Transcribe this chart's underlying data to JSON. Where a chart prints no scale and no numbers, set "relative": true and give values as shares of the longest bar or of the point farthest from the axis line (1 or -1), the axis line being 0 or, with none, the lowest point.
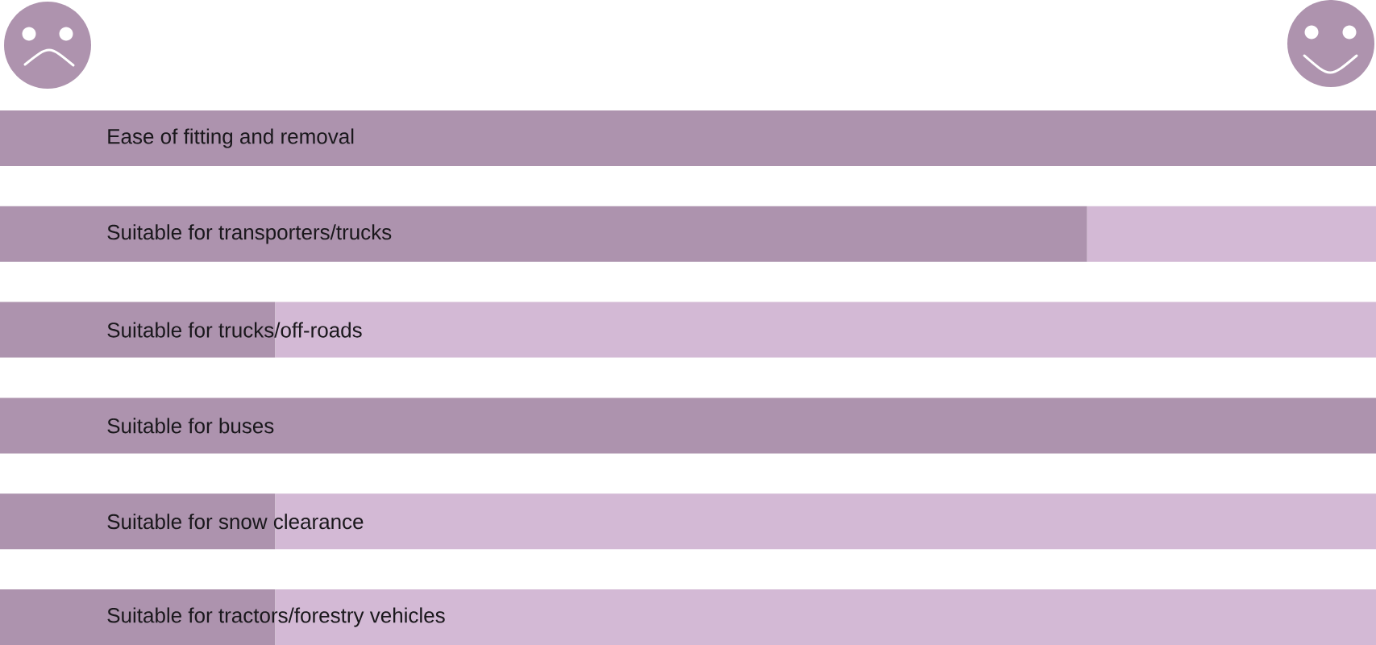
{
  "chart_data": {
    "type": "bar",
    "orientation": "horizontal",
    "stacked": true,
    "relative": true,
    "categories": [
      "Ease of fitting and removal",
      "Suitable for transporters/trucks",
      "Suitable for trucks/off-roads",
      "Suitable for buses",
      "Suitable for snow clearance",
      "Suitable for tractors/forestry vehicles"
    ],
    "series": [
      {
        "color": "#ad93ae",
        "values": [
          1,
          0.79,
          0.2,
          1,
          0.2,
          0.2
        ]
      },
      {
        "color": "#d3b9d5",
        "values": [
          null,
          0.21,
          0.8,
          null,
          0.8,
          0.8
        ]
      }
    ]
  }
}
